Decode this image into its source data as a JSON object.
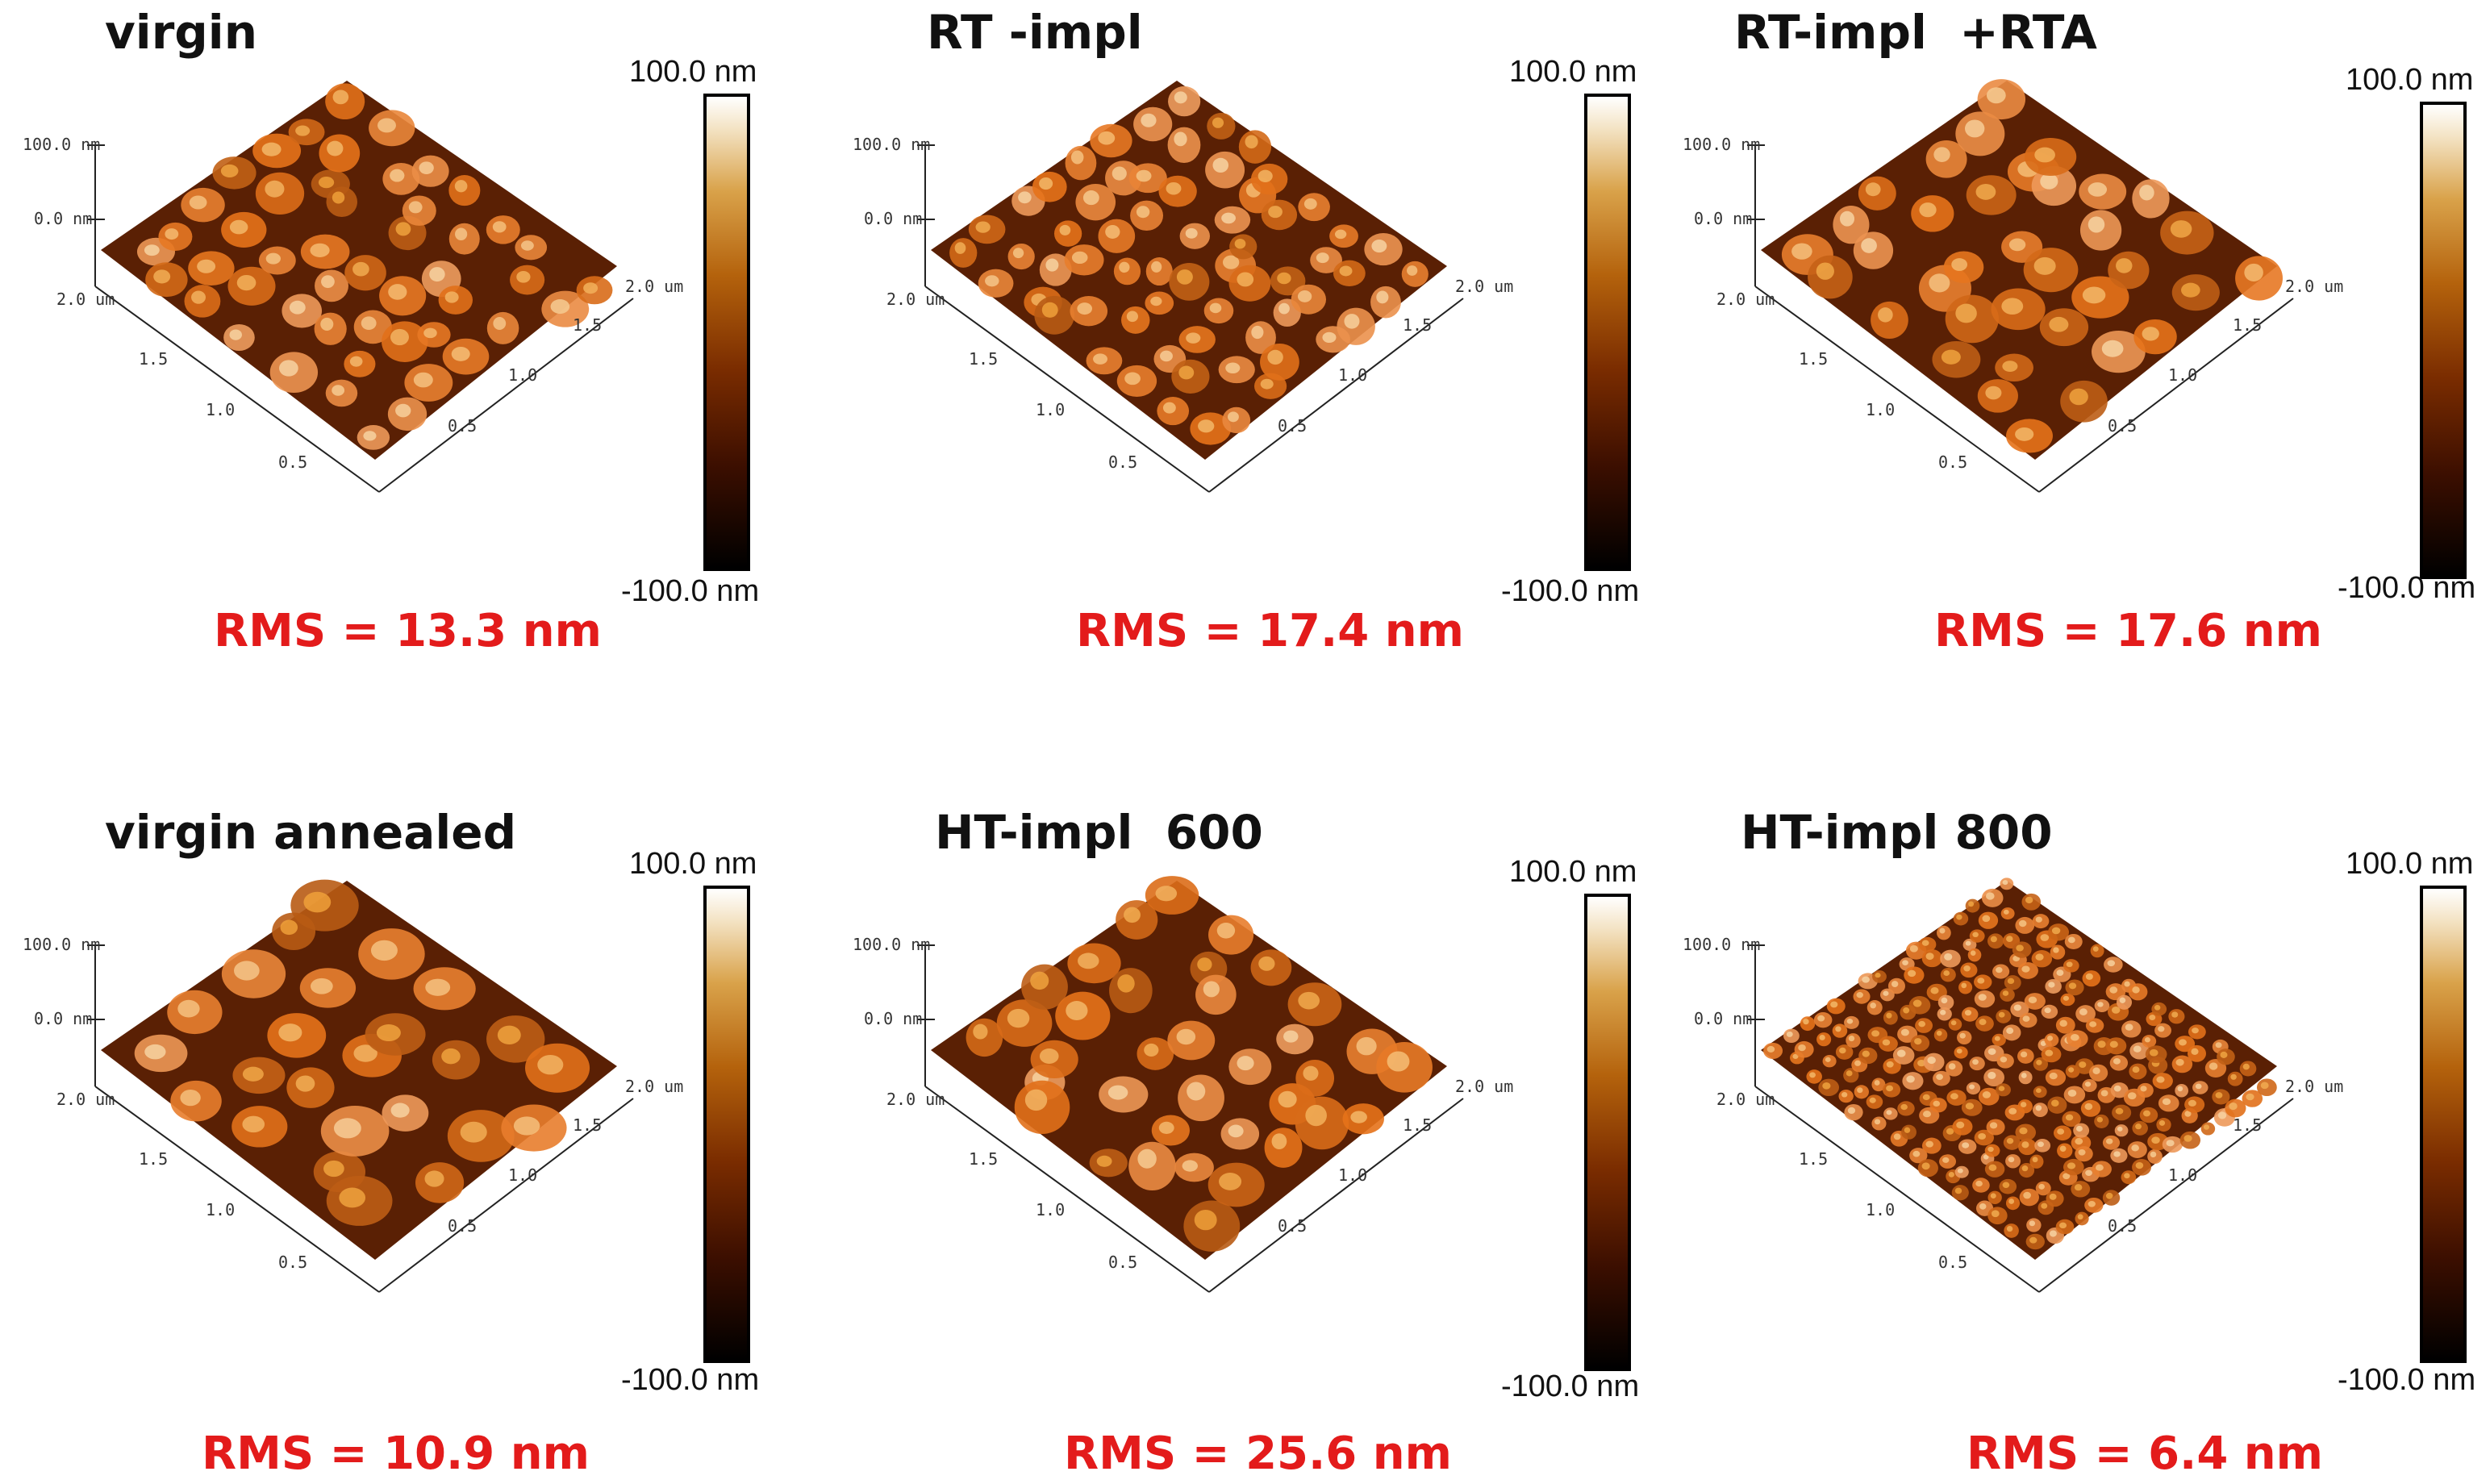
{
  "colors": {
    "title": "#111111",
    "rms": "#e31b1b",
    "surface_light": "#d98a32",
    "surface_dark": "#6b2a05"
  },
  "colorbar": {
    "max_label": "100.0 nm",
    "min_label": "-100.0 nm"
  },
  "axes": {
    "z_top": "100.0 nm",
    "z_zero": "0.0 nm",
    "y_ticks": [
      "2.0 um",
      "1.5",
      "1.0",
      "0.5"
    ],
    "x_ticks": [
      "2.0 um",
      "1.5",
      "1.0",
      "0.5"
    ]
  },
  "panels": [
    {
      "title": "virgin",
      "rms": "RMS = 13.3 nm"
    },
    {
      "title": "RT -impl",
      "rms": "RMS = 17.4 nm"
    },
    {
      "title": "RT-impl  +RTA",
      "rms": "RMS = 17.6 nm"
    },
    {
      "title": "virgin annealed",
      "rms": "RMS = 10.9 nm"
    },
    {
      "title": "HT-impl  600",
      "rms": "RMS = 25.6 nm"
    },
    {
      "title": "HT-impl 800",
      "rms": "RMS = 6.4 nm"
    }
  ]
}
